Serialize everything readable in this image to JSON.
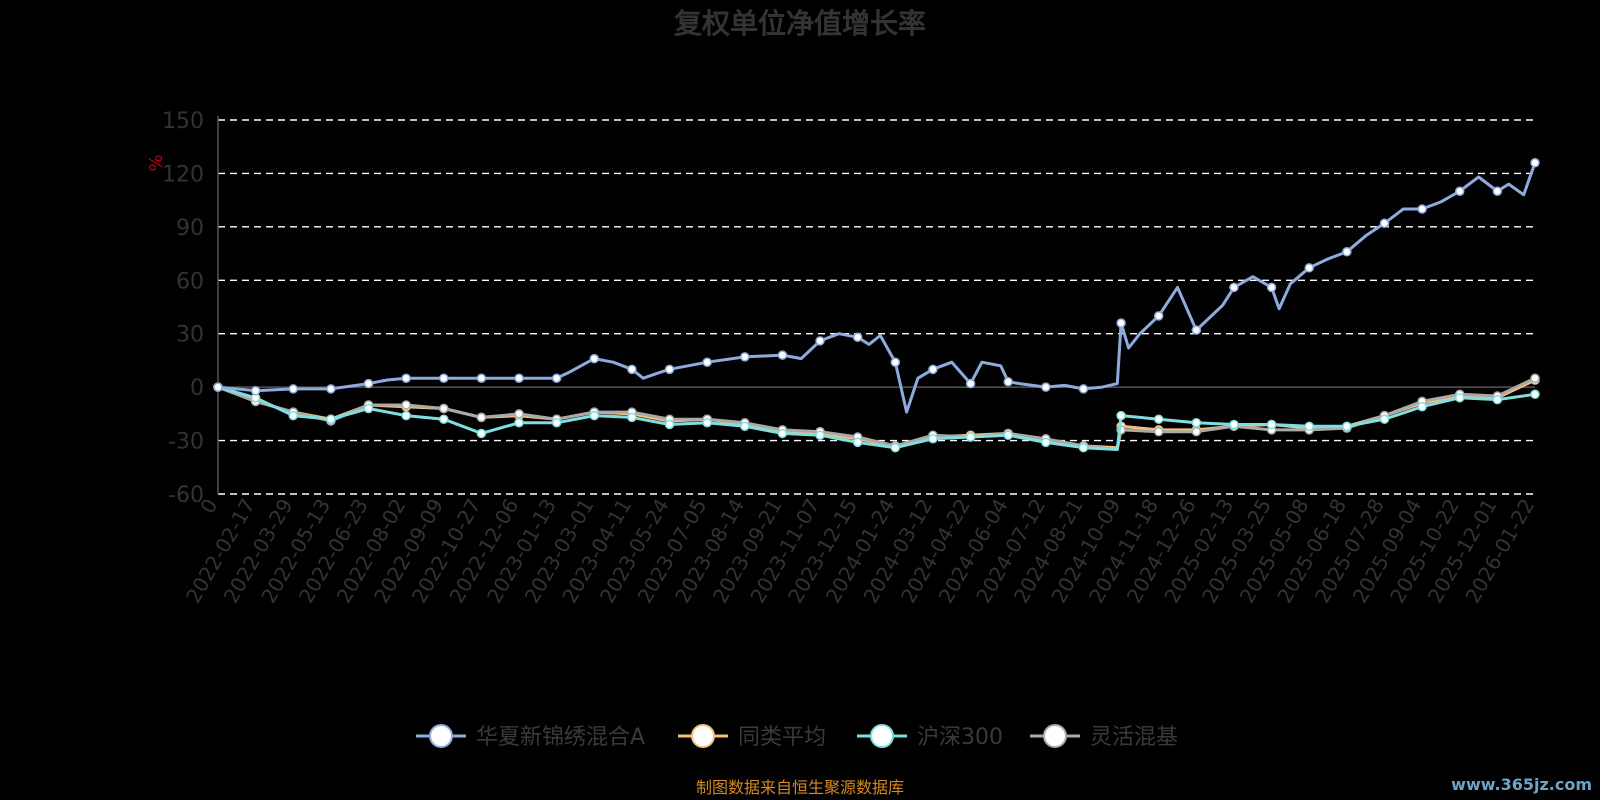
{
  "chart_data": {
    "type": "line",
    "title": "复权单位净值增长率",
    "ylabel": "%",
    "xlabel": "",
    "ylim": [
      -60,
      150
    ],
    "yticks": [
      -60,
      -30,
      0,
      30,
      60,
      90,
      120,
      150
    ],
    "x_tick_labels": [
      "0",
      "2022-02-17",
      "2022-03-29",
      "2022-05-13",
      "2022-06-23",
      "2022-08-02",
      "2022-09-09",
      "2022-10-27",
      "2022-12-06",
      "2023-01-13",
      "2023-03-01",
      "2023-04-11",
      "2023-05-24",
      "2023-07-05",
      "2023-08-14",
      "2023-09-21",
      "2023-11-07",
      "2023-12-15",
      "2024-01-24",
      "2024-03-12",
      "2024-04-22",
      "2024-06-04",
      "2024-07-12",
      "2024-08-21",
      "2024-10-09",
      "2024-11-18",
      "2024-12-26",
      "2025-02-13",
      "2025-03-25",
      "2025-05-08",
      "2025-06-18",
      "2025-07-28",
      "2025-09-04",
      "2025-10-22",
      "2025-12-01",
      "2026-01-22"
    ],
    "grid": true,
    "legend_position": "bottom",
    "series": [
      {
        "name": "华夏新锦绣混合A",
        "color": "#8faadc",
        "x": [
          0,
          1,
          2,
          3,
          4,
          4.5,
          5,
          6,
          7,
          8,
          9,
          9.3,
          10,
          10.5,
          11,
          11.3,
          11.7,
          12,
          13,
          14,
          15,
          15.5,
          16,
          16.5,
          17,
          17.3,
          17.6,
          18,
          18.3,
          18.6,
          19,
          19.5,
          20,
          20.3,
          20.8,
          21,
          21.3,
          22,
          22.5,
          23,
          23.5,
          23.9,
          24,
          24.2,
          24.5,
          25,
          25.5,
          26,
          26.3,
          26.7,
          27,
          27.5,
          28,
          28.2,
          28.5,
          29,
          29.5,
          30,
          30.5,
          31,
          31.5,
          32,
          32.5,
          33,
          33.5,
          34,
          34.3,
          34.7,
          35
        ],
        "values": [
          0,
          -2,
          -1,
          -1,
          2,
          4,
          5,
          5,
          5,
          5,
          5,
          8,
          16,
          14,
          10,
          5,
          8,
          10,
          14,
          17,
          18,
          16,
          26,
          30,
          28,
          24,
          29,
          14,
          -14,
          5,
          10,
          14,
          2,
          14,
          12,
          3,
          2,
          0,
          1,
          -1,
          0,
          2,
          36,
          22,
          30,
          40,
          56,
          32,
          38,
          46,
          56,
          62,
          56,
          44,
          58,
          67,
          72,
          76,
          85,
          92,
          100,
          100,
          104,
          110,
          118,
          110,
          114,
          108,
          126
        ]
      },
      {
        "name": "同类平均",
        "color": "#f5c17a",
        "x": [
          0,
          1,
          2,
          3,
          4,
          5,
          6,
          7,
          8,
          9,
          10,
          11,
          12,
          13,
          14,
          15,
          16,
          17,
          18,
          19,
          20,
          21,
          22,
          23,
          23.9,
          24,
          25,
          26,
          27,
          28,
          29,
          30,
          31,
          32,
          33,
          34,
          35
        ],
        "values": [
          0,
          -8,
          -14,
          -18,
          -10,
          -11,
          -12,
          -17,
          -16,
          -18,
          -14,
          -15,
          -19,
          -18,
          -21,
          -25,
          -26,
          -29,
          -33,
          -28,
          -27,
          -26,
          -30,
          -33,
          -34,
          -22,
          -24,
          -24,
          -22,
          -21,
          -23,
          -22,
          -16,
          -9,
          -5,
          -6,
          4
        ]
      },
      {
        "name": "沪深300",
        "color": "#7fdfe0",
        "x": [
          0,
          1,
          2,
          3,
          4,
          5,
          6,
          7,
          8,
          9,
          10,
          11,
          12,
          13,
          14,
          15,
          16,
          17,
          18,
          19,
          20,
          21,
          22,
          23,
          23.9,
          24,
          25,
          26,
          27,
          28,
          29,
          30,
          31,
          32,
          33,
          34,
          35
        ],
        "values": [
          0,
          -6,
          -16,
          -18,
          -12,
          -16,
          -18,
          -26,
          -20,
          -20,
          -16,
          -17,
          -21,
          -20,
          -22,
          -26,
          -27,
          -31,
          -34,
          -29,
          -28,
          -27,
          -31,
          -34,
          -35,
          -16,
          -18,
          -20,
          -21,
          -21,
          -22,
          -22,
          -18,
          -11,
          -6,
          -7,
          -4
        ]
      },
      {
        "name": "灵活混基",
        "color": "#a9a9a9",
        "x": [
          0,
          1,
          2,
          3,
          4,
          5,
          6,
          7,
          8,
          9,
          10,
          11,
          12,
          13,
          14,
          15,
          16,
          17,
          18,
          19,
          20,
          21,
          22,
          23,
          23.9,
          24,
          25,
          26,
          27,
          28,
          29,
          30,
          31,
          32,
          33,
          34,
          35
        ],
        "values": [
          0,
          -8,
          -14,
          -19,
          -10,
          -10,
          -12,
          -17,
          -15,
          -18,
          -14,
          -14,
          -18,
          -18,
          -20,
          -24,
          -25,
          -28,
          -33,
          -27,
          -28,
          -26,
          -29,
          -33,
          -35,
          -24,
          -25,
          -25,
          -22,
          -24,
          -24,
          -23,
          -16,
          -8,
          -4,
          -5,
          5
        ]
      }
    ]
  },
  "footer": {
    "source": "制图数据来自恒生聚源数据库",
    "watermark": "www.365jz.com"
  }
}
